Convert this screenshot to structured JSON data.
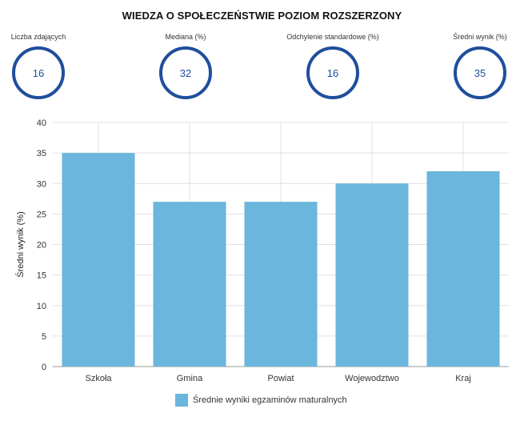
{
  "page": {
    "title": "WIEDZA O SPOŁECZEŃSTWIE POZIOM ROZSZERZONY"
  },
  "stats": [
    {
      "label": "Liczba zdających",
      "value": "16"
    },
    {
      "label": "Mediana (%)",
      "value": "32"
    },
    {
      "label": "Odchylenie standardowe (%)",
      "value": "16"
    },
    {
      "label": "Średni wynik (%)",
      "value": "35"
    }
  ],
  "colors": {
    "bar": "#6ab6dc",
    "circle": "#1f4e9c",
    "grid": "#e0e0e0",
    "axis": "#999999"
  },
  "chart_data": {
    "type": "bar",
    "title": "",
    "xlabel": "",
    "ylabel": "Średni wynik (%)",
    "categories": [
      "Szkoła",
      "Gmina",
      "Powiat",
      "Wojewodztwo",
      "Kraj"
    ],
    "series": [
      {
        "name": "Średnie wyniki egzaminów maturalnych",
        "values": [
          35,
          27,
          27,
          30,
          32
        ]
      }
    ],
    "ylim": [
      0,
      40
    ],
    "yticks": [
      0,
      5,
      10,
      15,
      20,
      25,
      30,
      35,
      40
    ],
    "grid": true,
    "legend": "bottom"
  }
}
